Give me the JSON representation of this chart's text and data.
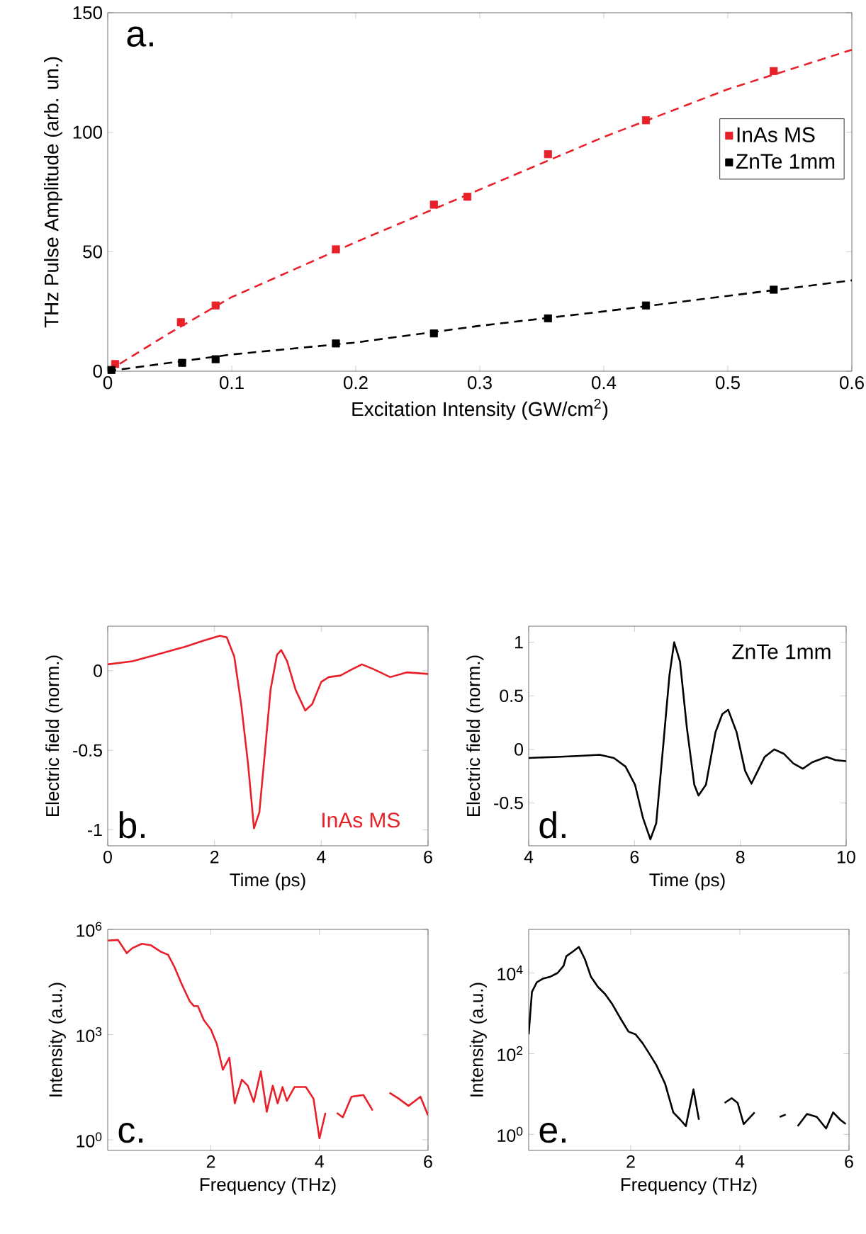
{
  "chart_data": [
    {
      "type": "scatter",
      "xlabel": "Excitation Intensity (GW/cm$^{2}$)",
      "ylabel": "THz Pulse Amplitude (arb. un.)",
      "annotations": [
        "a."
      ],
      "xlim": [
        0,
        0.6
      ],
      "ylim": [
        0,
        150
      ],
      "xticks": [
        0,
        0.1,
        0.2,
        0.3,
        0.4,
        0.5,
        0.6
      ],
      "yticks": [
        0,
        50,
        100,
        150
      ],
      "legend": "right",
      "series": [
        {
          "name": "InAs MS",
          "marker": "square",
          "color": "#e8202a",
          "x": [
            0.006,
            0.059,
            0.087,
            0.184,
            0.263,
            0.29,
            0.355,
            0.434,
            0.537
          ],
          "values": [
            3,
            20.5,
            27.5,
            51,
            69.7,
            73,
            90.8,
            105,
            125.6
          ]
        },
        {
          "name": "ZnTe 1mm",
          "marker": "square",
          "color": "#000000",
          "x": [
            0.003,
            0.06,
            0.087,
            0.184,
            0.263,
            0.355,
            0.434,
            0.537
          ],
          "values": [
            0.5,
            3.5,
            5,
            11.6,
            15.8,
            22.1,
            27.5,
            34.1
          ]
        },
        {
          "type": "line",
          "marker": "none",
          "line_style": "dashed",
          "color": "#e8202a",
          "x": [
            0,
            0.05,
            0.1,
            0.2,
            0.3,
            0.4,
            0.5,
            0.6
          ],
          "values": [
            0,
            16,
            31,
            54,
            76,
            98,
            118,
            134.5
          ]
        },
        {
          "type": "line",
          "marker": "none",
          "line_style": "dashed",
          "color": "#000000",
          "x": [
            0,
            0.1,
            0.2,
            0.3,
            0.4,
            0.5,
            0.6
          ],
          "values": [
            0,
            7,
            12,
            19,
            25,
            31.5,
            38
          ]
        }
      ]
    },
    {
      "type": "line",
      "xlabel": "Time (ps)",
      "ylabel": "Electric field (norm.)",
      "annotations": [
        "b."
      ],
      "xlim": [
        0,
        6
      ],
      "ylim": [
        -1.1,
        0.28
      ],
      "xticks": [
        0,
        2,
        4,
        6
      ],
      "yticks": [
        -1,
        -0.5,
        0
      ],
      "series": [
        {
          "name": "InAs MS",
          "color": "#e8202a",
          "x": [
            0,
            0.46,
            0.9,
            1.44,
            1.8,
            2.1,
            2.23,
            2.37,
            2.5,
            2.63,
            2.74,
            2.84,
            2.94,
            3.05,
            3.17,
            3.25,
            3.36,
            3.52,
            3.7,
            3.83,
            4.0,
            4.14,
            4.36,
            4.58,
            4.76,
            4.98,
            5.29,
            5.6,
            6
          ],
          "values": [
            0.04,
            0.06,
            0.1,
            0.15,
            0.19,
            0.22,
            0.21,
            0.09,
            -0.21,
            -0.59,
            -0.99,
            -0.89,
            -0.53,
            -0.12,
            0.1,
            0.13,
            0.06,
            -0.12,
            -0.25,
            -0.21,
            -0.07,
            -0.04,
            -0.03,
            0.01,
            0.04,
            0.01,
            -0.04,
            -0.01,
            -0.02
          ]
        }
      ]
    },
    {
      "type": "line",
      "xlabel": "Time (ps)",
      "ylabel": "Electric field (norm.)",
      "annotations": [
        "d."
      ],
      "xlim": [
        4,
        10
      ],
      "ylim": [
        -0.9,
        1.15
      ],
      "xticks": [
        4,
        6,
        8,
        10
      ],
      "yticks": [
        -0.5,
        0,
        0.5,
        1
      ],
      "series": [
        {
          "name": "ZnTe 1mm",
          "color": "#000000",
          "x": [
            4,
            4.54,
            4.98,
            5.34,
            5.61,
            5.83,
            6.01,
            6.16,
            6.3,
            6.41,
            6.54,
            6.66,
            6.75,
            6.86,
            6.99,
            7.13,
            7.21,
            7.35,
            7.53,
            7.66,
            7.77,
            7.93,
            8.09,
            8.21,
            8.33,
            8.46,
            8.64,
            8.82,
            9.0,
            9.18,
            9.36,
            9.63,
            9.8,
            10
          ],
          "values": [
            -0.08,
            -0.07,
            -0.06,
            -0.05,
            -0.08,
            -0.16,
            -0.33,
            -0.64,
            -0.84,
            -0.69,
            0.02,
            0.69,
            1.0,
            0.82,
            0.2,
            -0.33,
            -0.43,
            -0.33,
            0.16,
            0.33,
            0.37,
            0.16,
            -0.2,
            -0.32,
            -0.2,
            -0.07,
            0,
            -0.04,
            -0.13,
            -0.18,
            -0.12,
            -0.07,
            -0.1,
            -0.11
          ]
        }
      ]
    },
    {
      "type": "line",
      "xlabel": "Frequency (THz)",
      "ylabel": "Intensity (a.u.)",
      "annotations": [
        "c."
      ],
      "log": "y",
      "xlim": [
        0.1,
        6
      ],
      "ylim": [
        0.5,
        1000000
      ],
      "xticks": [
        2,
        4,
        6
      ],
      "yticks": [
        {
          "value": 1,
          "label": "10$^{0}$"
        },
        {
          "value": 1000,
          "label": "10$^{3}$"
        },
        {
          "value": 1000000,
          "label": "10$^{6}$"
        }
      ],
      "series": [
        {
          "color": "#e8202a",
          "x": [
            0.1,
            0.29,
            0.45,
            0.55,
            0.73,
            0.9,
            1.08,
            1.21,
            1.32,
            1.47,
            1.61,
            1.69,
            1.76,
            1.87,
            2.0,
            2.11,
            2.22,
            2.34,
            2.44,
            2.57,
            2.68,
            2.79,
            2.92,
            3.03,
            3.14,
            3.23,
            3.32,
            3.4,
            3.54,
            3.75,
            3.89,
            4.0,
            4.11,
            4.22,
            4.32,
            4.43,
            4.59,
            4.81,
            4.98,
            5.11,
            5.29,
            5.46,
            5.64,
            5.86,
            6.0
          ],
          "values": [
            480000,
            500000,
            210000,
            290000,
            390000,
            350000,
            230000,
            190000,
            91000,
            26000,
            9000,
            6500,
            6500,
            2600,
            1400,
            540,
            100,
            220,
            11,
            52,
            35,
            12,
            90,
            6.3,
            35,
            11,
            32,
            13,
            32,
            32,
            15,
            1.1,
            5.9,
            null,
            5.9,
            4.4,
            17,
            19,
            6.9,
            null,
            22,
            15,
            9.3,
            17,
            5
          ]
        }
      ]
    },
    {
      "type": "line",
      "xlabel": "Frequency (THz)",
      "ylabel": "Intensity (a.u.)",
      "annotations": [
        "e."
      ],
      "log": "y",
      "xlim": [
        0.13,
        6
      ],
      "ylim": [
        0.4,
        120000
      ],
      "xticks": [
        2,
        4,
        6
      ],
      "yticks": [
        {
          "value": 1,
          "label": "10$^{0}$"
        },
        {
          "value": 100,
          "label": "10$^{2}$"
        },
        {
          "value": 10000,
          "label": "10$^{4}$"
        }
      ],
      "series": [
        {
          "color": "#000000",
          "x": [
            0.13,
            0.19,
            0.28,
            0.39,
            0.53,
            0.66,
            0.77,
            0.82,
            0.94,
            1.05,
            1.16,
            1.27,
            1.4,
            1.53,
            1.66,
            1.83,
            1.96,
            2.09,
            2.22,
            2.34,
            2.47,
            2.63,
            2.78,
            2.91,
            3.01,
            3.15,
            3.25,
            3.47,
            3.72,
            3.85,
            3.96,
            4.07,
            4.27,
            4.44,
            4.73,
            4.84,
            4.96,
            5.06,
            5.23,
            5.41,
            5.58,
            5.71,
            5.84,
            5.94
          ],
          "values": [
            300,
            3400,
            5900,
            7200,
            8100,
            10000,
            15000,
            26000,
            34000,
            44000,
            22000,
            8100,
            4500,
            3000,
            1700,
            680,
            350,
            300,
            180,
            100,
            52,
            18,
            3.5,
            2.3,
            1.6,
            13,
            2.3,
            null,
            6,
            7.9,
            6,
            1.8,
            3.5,
            null,
            2.7,
            3.1,
            null,
            1.6,
            3.2,
            2.7,
            1.4,
            3.5,
            2.3,
            1.8
          ]
        }
      ]
    }
  ]
}
